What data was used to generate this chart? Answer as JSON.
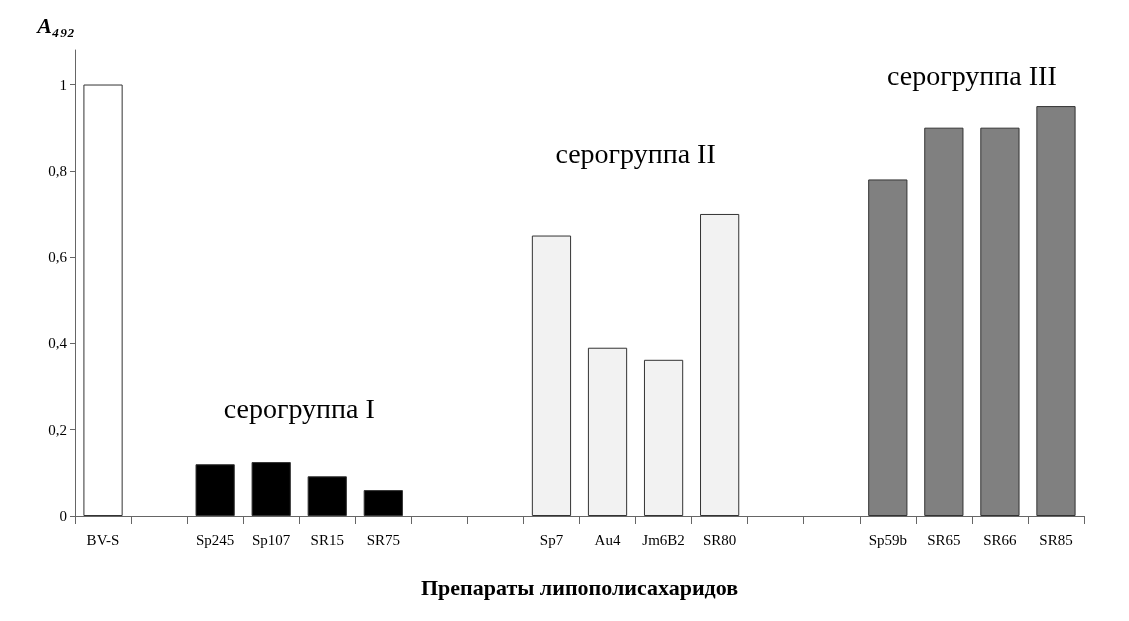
{
  "chart_data": {
    "type": "bar",
    "ylabel": "A₄₉₂",
    "xlabel": "Препараты липополисахаридов",
    "categories": [
      "BV-S",
      null,
      "Sp245",
      "Sp107",
      "SR15",
      "SR75",
      null,
      null,
      "Sp7",
      "Au4",
      "Jm6B2",
      "SR80",
      null,
      null,
      "Sp59b",
      "SR65",
      "SR66",
      "SR85"
    ],
    "values": [
      1.0,
      null,
      0.12,
      0.125,
      0.092,
      0.06,
      null,
      null,
      0.65,
      0.39,
      0.362,
      0.7,
      null,
      null,
      0.78,
      0.9,
      0.9,
      0.95
    ],
    "colors": [
      "#ffffff",
      null,
      "#000000",
      "#000000",
      "#000000",
      "#000000",
      null,
      null,
      "#f2f2f2",
      "#f2f2f2",
      "#f2f2f2",
      "#f2f2f2",
      null,
      null,
      "#808080",
      "#808080",
      "#808080",
      "#808080"
    ],
    "ylim": [
      0,
      1.08
    ],
    "yticks": [
      0,
      {
        "value": 0.2,
        "label": "0,2"
      },
      {
        "value": 0.4,
        "label": "0,4"
      },
      {
        "value": 0.6,
        "label": "0,6"
      },
      {
        "value": 0.8,
        "label": "0,8"
      },
      1
    ],
    "annotations": [
      "серогруппа I",
      "серогруппа II",
      "серогруппа III"
    ],
    "grid": false
  }
}
